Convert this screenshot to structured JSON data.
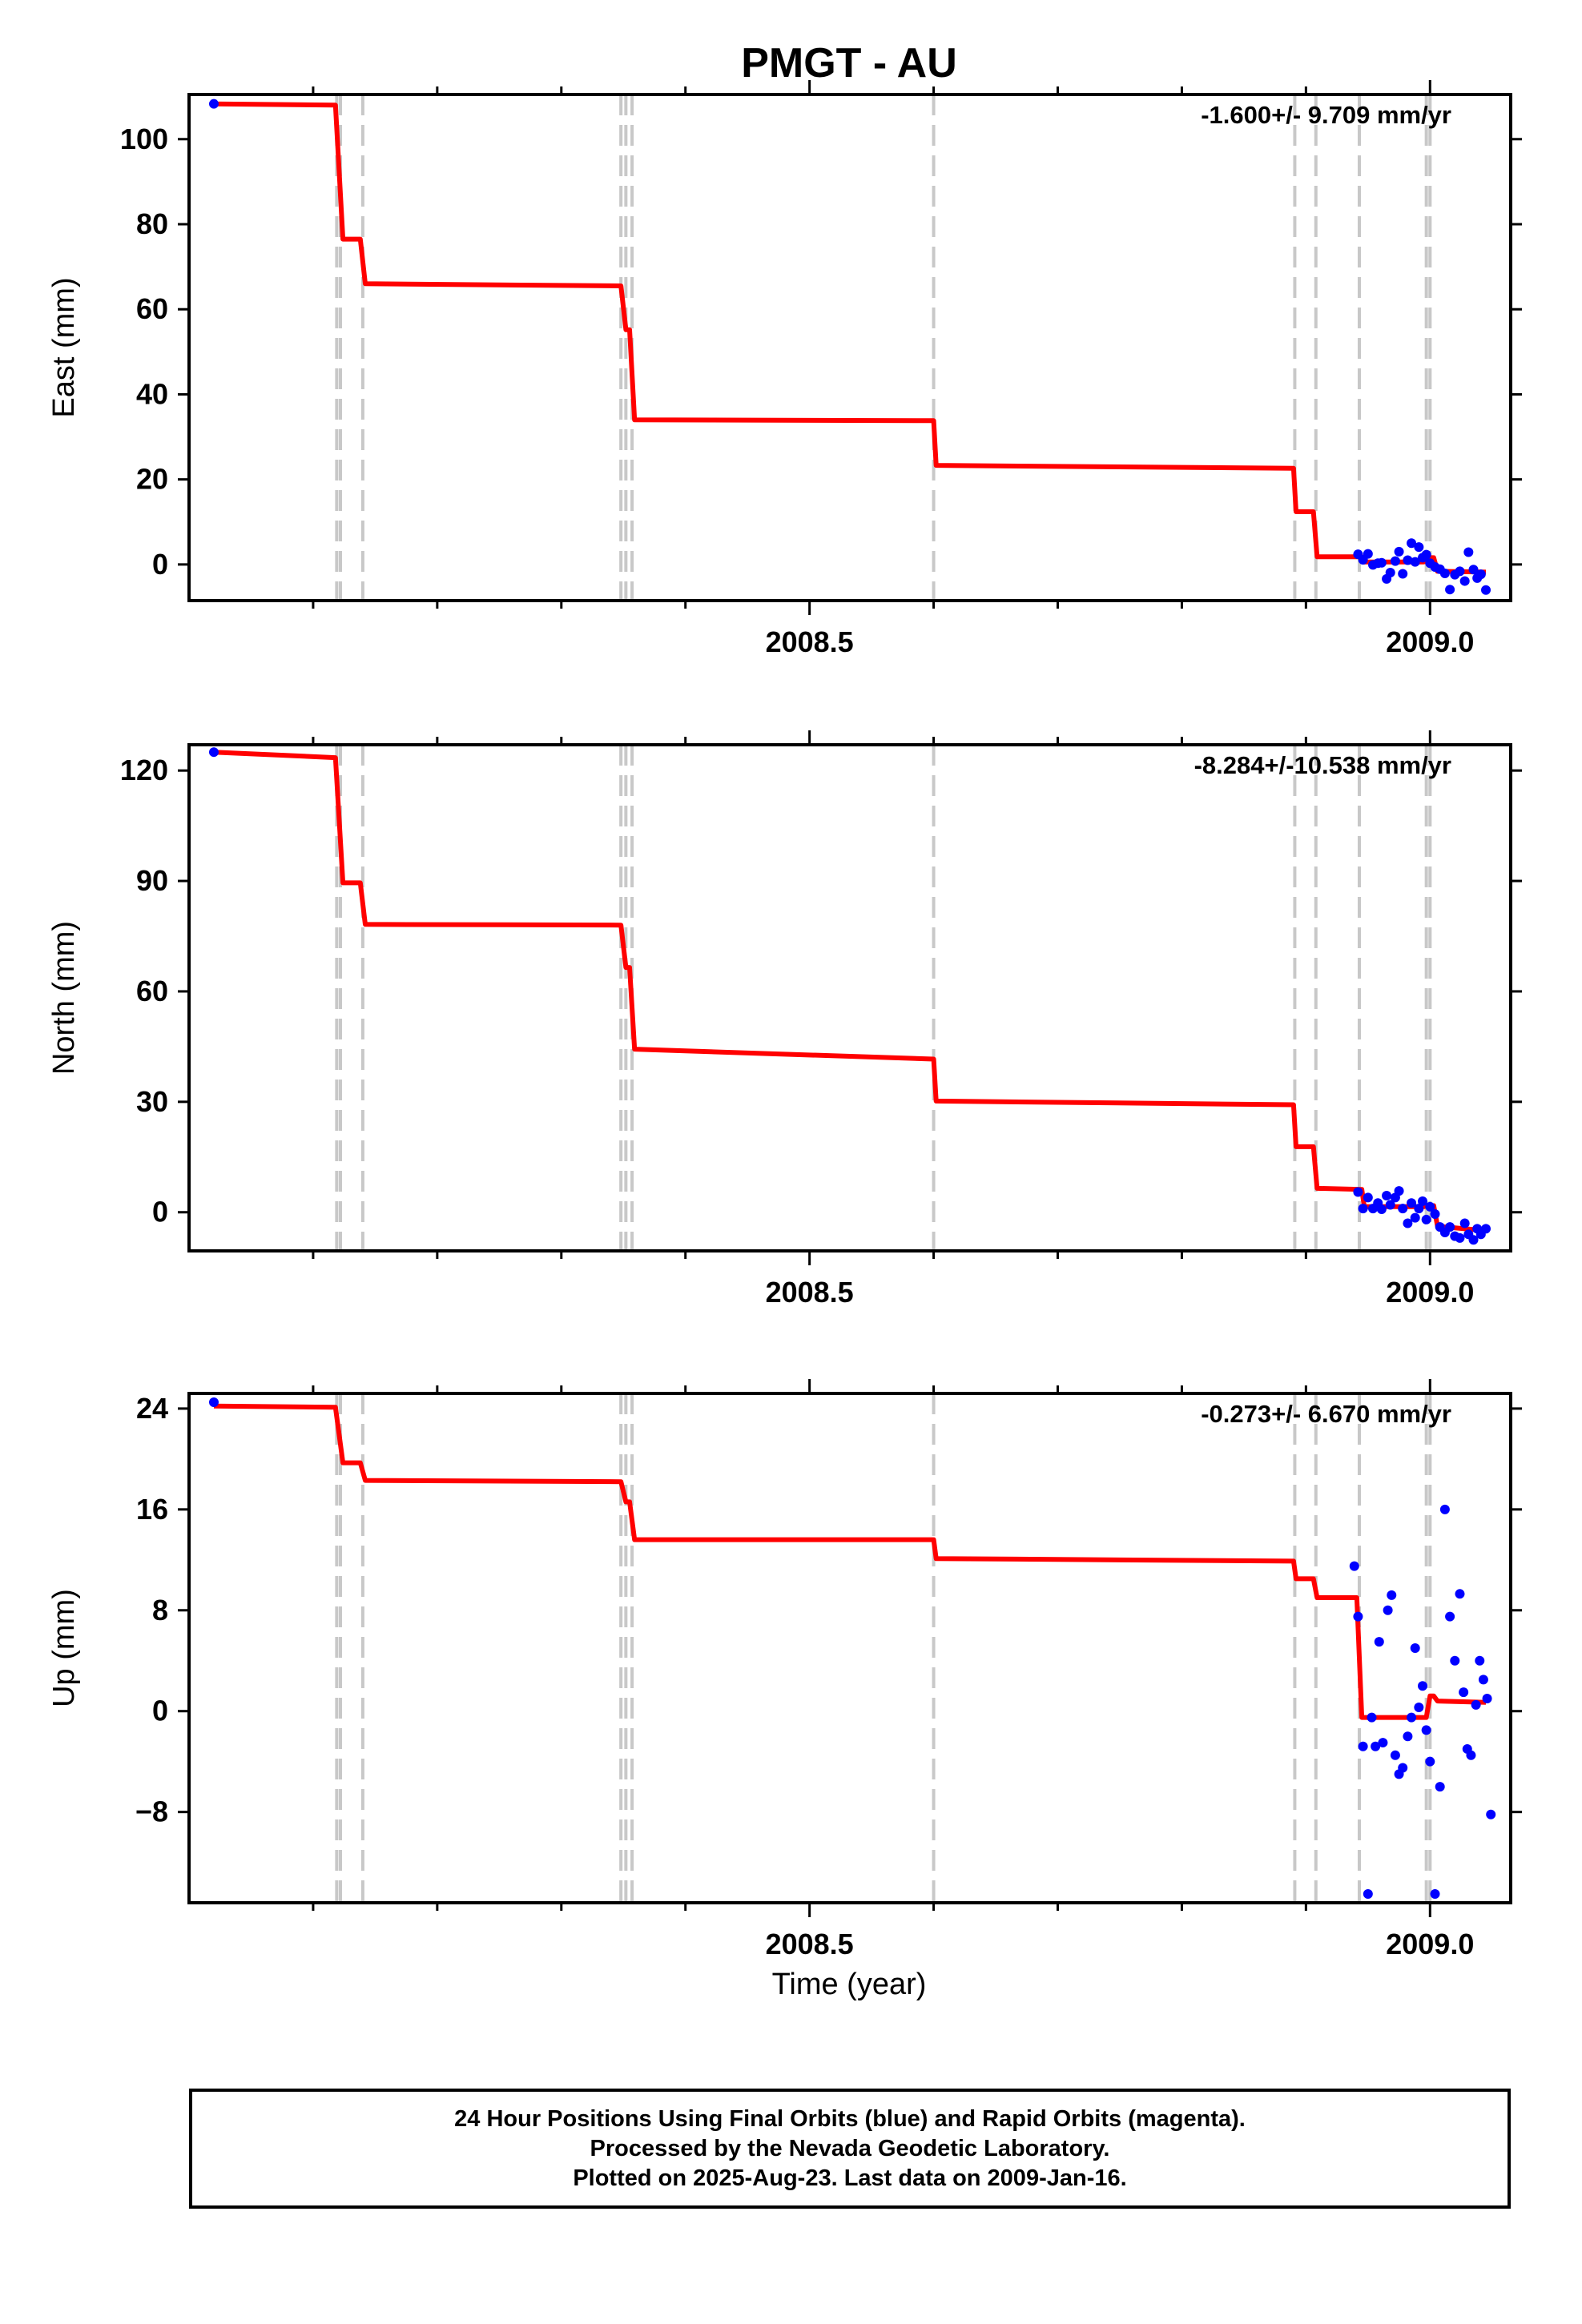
{
  "chart_data": {
    "type": "line",
    "title": "PMGT - AU",
    "xlabel": "Time (year)",
    "xlim": [
      2008.0,
      2009.065
    ],
    "x_ticks": [
      2008.5,
      2009.0
    ],
    "x_tick_labels": [
      "2008.5",
      "2009.0"
    ],
    "x_minor_ticks": [
      2008.1,
      2008.2,
      2008.3,
      2008.4,
      2008.6,
      2008.7,
      2008.8,
      2008.9
    ],
    "grid": false,
    "colors": {
      "model": "#ff0000",
      "observations": "#0000ff",
      "event_lines": "#c8c8c8",
      "frame": "#000000"
    },
    "event_lines_x": [
      2008.119,
      2008.122,
      2008.14,
      2008.348,
      2008.352,
      2008.357,
      2008.6,
      2008.891,
      2008.908,
      2008.943,
      2008.997,
      2009.0
    ],
    "panels": [
      {
        "name": "east",
        "ylabel": "East (mm)",
        "ylim": [
          -8.5,
          110.5
        ],
        "y_ticks": [
          0,
          20,
          40,
          60,
          80,
          100
        ],
        "y_tick_labels": [
          "0",
          "20",
          "40",
          "60",
          "80",
          "100"
        ],
        "annotation": "-1.600+/- 9.709 mm/yr",
        "model": [
          [
            2008.02,
            108.3
          ],
          [
            2008.118,
            108.0
          ],
          [
            2008.124,
            76.5
          ],
          [
            2008.138,
            76.5
          ],
          [
            2008.142,
            66.0
          ],
          [
            2008.348,
            65.5
          ],
          [
            2008.352,
            55.2
          ],
          [
            2008.355,
            55.2
          ],
          [
            2008.359,
            34.0
          ],
          [
            2008.6,
            33.8
          ],
          [
            2008.602,
            23.3
          ],
          [
            2008.89,
            22.6
          ],
          [
            2008.892,
            12.4
          ],
          [
            2008.906,
            12.4
          ],
          [
            2008.909,
            1.8
          ],
          [
            2008.945,
            1.8
          ],
          [
            2008.947,
            0.6
          ],
          [
            2008.995,
            0.6
          ],
          [
            2008.998,
            1.6
          ],
          [
            2009.003,
            1.6
          ],
          [
            2009.006,
            -1.6
          ],
          [
            2009.045,
            -1.8
          ]
        ],
        "points": [
          [
            2008.02,
            108.3
          ],
          [
            2008.942,
            2.4
          ],
          [
            2008.946,
            1.1
          ],
          [
            2008.95,
            2.5
          ],
          [
            2008.954,
            -0.1
          ],
          [
            2008.958,
            0.3
          ],
          [
            2008.961,
            0.4
          ],
          [
            2008.965,
            -3.4
          ],
          [
            2008.968,
            -1.9
          ],
          [
            2008.972,
            0.8
          ],
          [
            2008.975,
            3.0
          ],
          [
            2008.978,
            -2.2
          ],
          [
            2008.982,
            1.0
          ],
          [
            2008.985,
            5.0
          ],
          [
            2008.988,
            0.6
          ],
          [
            2008.991,
            4.1
          ],
          [
            2008.994,
            1.6
          ],
          [
            2008.997,
            2.3
          ],
          [
            2009.0,
            0.3
          ],
          [
            2009.004,
            -0.6
          ],
          [
            2009.008,
            -1.1
          ],
          [
            2009.012,
            -2.1
          ],
          [
            2009.016,
            -5.9
          ],
          [
            2009.02,
            -2.4
          ],
          [
            2009.024,
            -1.6
          ],
          [
            2009.028,
            -3.9
          ],
          [
            2009.031,
            2.9
          ],
          [
            2009.035,
            -1.2
          ],
          [
            2009.038,
            -3.2
          ],
          [
            2009.041,
            -2.3
          ],
          [
            2009.045,
            -6.0
          ]
        ]
      },
      {
        "name": "north",
        "ylabel": "North (mm)",
        "ylim": [
          -10.5,
          127
        ],
        "y_ticks": [
          0,
          30,
          60,
          90,
          120
        ],
        "y_tick_labels": [
          "0",
          "30",
          "60",
          "90",
          "120"
        ],
        "annotation": "-8.284+/-10.538 mm/yr",
        "model": [
          [
            2008.02,
            125.0
          ],
          [
            2008.118,
            123.5
          ],
          [
            2008.124,
            89.5
          ],
          [
            2008.138,
            89.5
          ],
          [
            2008.142,
            78.2
          ],
          [
            2008.348,
            78.0
          ],
          [
            2008.352,
            66.5
          ],
          [
            2008.355,
            66.5
          ],
          [
            2008.359,
            44.3
          ],
          [
            2008.6,
            41.6
          ],
          [
            2008.602,
            30.2
          ],
          [
            2008.89,
            29.2
          ],
          [
            2008.892,
            17.8
          ],
          [
            2008.906,
            17.8
          ],
          [
            2008.909,
            6.5
          ],
          [
            2008.945,
            6.2
          ],
          [
            2008.947,
            1.5
          ],
          [
            2008.995,
            1.5
          ],
          [
            2008.998,
            1.8
          ],
          [
            2009.003,
            1.8
          ],
          [
            2009.006,
            -3.8
          ],
          [
            2009.045,
            -5.0
          ]
        ],
        "points": [
          [
            2008.02,
            125.0
          ],
          [
            2008.942,
            5.5
          ],
          [
            2008.946,
            1.0
          ],
          [
            2008.95,
            4.0
          ],
          [
            2008.954,
            1.0
          ],
          [
            2008.958,
            2.5
          ],
          [
            2008.961,
            0.8
          ],
          [
            2008.965,
            4.5
          ],
          [
            2008.968,
            2.0
          ],
          [
            2008.972,
            4.0
          ],
          [
            2008.975,
            5.8
          ],
          [
            2008.978,
            1.0
          ],
          [
            2008.982,
            -3.0
          ],
          [
            2008.985,
            2.5
          ],
          [
            2008.988,
            -1.5
          ],
          [
            2008.991,
            1.0
          ],
          [
            2008.994,
            3.0
          ],
          [
            2008.997,
            -2.0
          ],
          [
            2009.0,
            1.5
          ],
          [
            2009.004,
            -0.5
          ],
          [
            2009.008,
            -4.0
          ],
          [
            2009.012,
            -5.5
          ],
          [
            2009.016,
            -4.0
          ],
          [
            2009.02,
            -6.5
          ],
          [
            2009.024,
            -7.0
          ],
          [
            2009.028,
            -3.0
          ],
          [
            2009.031,
            -6.0
          ],
          [
            2009.035,
            -7.5
          ],
          [
            2009.038,
            -4.5
          ],
          [
            2009.041,
            -6.0
          ],
          [
            2009.045,
            -4.5
          ]
        ]
      },
      {
        "name": "up",
        "ylabel": "Up (mm)",
        "ylim": [
          -15.2,
          25.2
        ],
        "y_ticks": [
          -8,
          0,
          8,
          16,
          24
        ],
        "y_tick_labels": [
          "−8",
          "0",
          "8",
          "16",
          "24"
        ],
        "annotation": "-0.273+/- 6.670 mm/yr",
        "model": [
          [
            2008.02,
            24.2
          ],
          [
            2008.118,
            24.1
          ],
          [
            2008.124,
            19.7
          ],
          [
            2008.138,
            19.7
          ],
          [
            2008.142,
            18.3
          ],
          [
            2008.348,
            18.2
          ],
          [
            2008.352,
            16.6
          ],
          [
            2008.355,
            16.6
          ],
          [
            2008.359,
            13.6
          ],
          [
            2008.6,
            13.6
          ],
          [
            2008.602,
            12.1
          ],
          [
            2008.89,
            11.9
          ],
          [
            2008.892,
            10.5
          ],
          [
            2008.906,
            10.5
          ],
          [
            2008.909,
            9.0
          ],
          [
            2008.941,
            9.0
          ],
          [
            2008.945,
            -0.5
          ],
          [
            2008.997,
            -0.5
          ],
          [
            2009.0,
            1.2
          ],
          [
            2009.003,
            1.2
          ],
          [
            2009.006,
            0.8
          ],
          [
            2009.045,
            0.7
          ]
        ],
        "points": [
          [
            2008.02,
            24.5
          ],
          [
            2008.939,
            11.5
          ],
          [
            2008.942,
            7.5
          ],
          [
            2008.946,
            -2.8
          ],
          [
            2008.95,
            -14.5
          ],
          [
            2008.953,
            -0.5
          ],
          [
            2008.956,
            -2.8
          ],
          [
            2008.959,
            5.5
          ],
          [
            2008.962,
            -2.5
          ],
          [
            2008.966,
            8.0
          ],
          [
            2008.969,
            9.2
          ],
          [
            2008.972,
            -3.5
          ],
          [
            2008.975,
            -5.0
          ],
          [
            2008.978,
            -4.5
          ],
          [
            2008.982,
            -2.0
          ],
          [
            2008.985,
            -0.5
          ],
          [
            2008.988,
            5.0
          ],
          [
            2008.991,
            0.3
          ],
          [
            2008.994,
            2.0
          ],
          [
            2008.997,
            -1.5
          ],
          [
            2009.0,
            -4.0
          ],
          [
            2009.004,
            -14.5
          ],
          [
            2009.008,
            -6.0
          ],
          [
            2009.012,
            16.0
          ],
          [
            2009.016,
            7.5
          ],
          [
            2009.02,
            4.0
          ],
          [
            2009.024,
            9.3
          ],
          [
            2009.027,
            1.5
          ],
          [
            2009.03,
            -3.0
          ],
          [
            2009.033,
            -3.5
          ],
          [
            2009.037,
            0.5
          ],
          [
            2009.04,
            4.0
          ],
          [
            2009.043,
            2.5
          ],
          [
            2009.046,
            1.0
          ],
          [
            2009.049,
            -8.2
          ]
        ]
      }
    ]
  },
  "footer": {
    "line1": "24 Hour Positions Using Final Orbits (blue) and Rapid Orbits (magenta).",
    "line2": "Processed by the Nevada Geodetic Laboratory.",
    "line3": "Plotted on 2025-Aug-23. Last data on 2009-Jan-16."
  }
}
